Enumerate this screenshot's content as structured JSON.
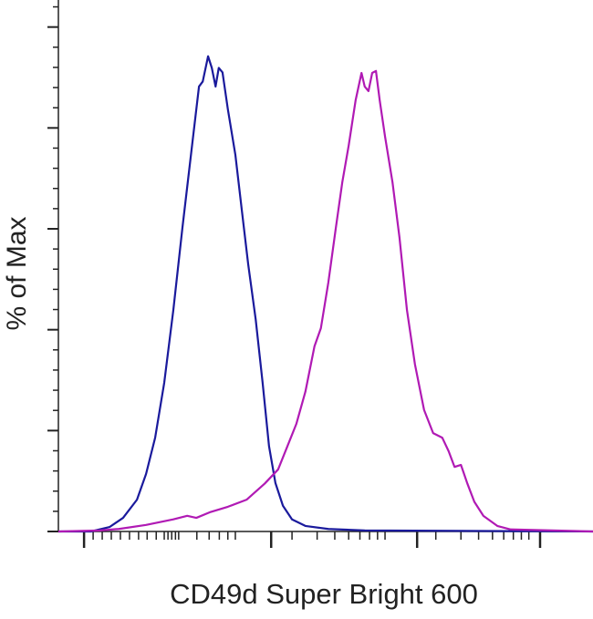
{
  "chart_data": {
    "type": "line",
    "x_label": "CD49d Super Bright 600",
    "y_label": "% of Max",
    "xlim": [
      0,
      100
    ],
    "ylim": [
      0,
      105
    ],
    "xticks": [
      4.8,
      39.8,
      67.1,
      90.1
    ],
    "x_minor_ticks": [
      6.5,
      8.2,
      9.9,
      11.6,
      13.3,
      15.0,
      16.6,
      18.3,
      19.8,
      20.5,
      21.2,
      21.9,
      22.5,
      25.9,
      28.2,
      30.1,
      31.7,
      33.1,
      43.7,
      48.4,
      51.7,
      54.3,
      56.4,
      58.2,
      59.7,
      61.1,
      70.6,
      75.3,
      78.6,
      81.2,
      83.3,
      85.1,
      86.6,
      88.0
    ],
    "yticks": [
      0,
      20,
      40,
      60,
      80,
      100
    ],
    "y_minor_ticks": [
      4,
      8,
      12,
      16,
      24,
      28,
      32,
      36,
      44,
      48,
      52,
      56,
      64,
      68,
      72,
      76,
      84,
      88,
      92,
      96,
      104
    ],
    "series": [
      {
        "color": "#1a1a9c",
        "x": [
          0,
          6.1,
          9.6,
          12.1,
          14.7,
          16.4,
          18.1,
          19.8,
          21.5,
          23.2,
          25.0,
          26.3,
          27.0,
          28.0,
          28.7,
          29.4,
          30.0,
          30.7,
          31.7,
          33.1,
          34.3,
          35.5,
          36.9,
          38.2,
          39.4,
          40.6,
          42.0,
          43.7,
          46.2,
          50.5,
          57.3,
          100
        ],
        "values": [
          0,
          0,
          0.9,
          2.7,
          6.3,
          11.4,
          18.6,
          29.5,
          43.9,
          60.2,
          76.5,
          88.2,
          89.2,
          94.2,
          91.9,
          88.2,
          91.9,
          91.0,
          83.7,
          74.7,
          63.8,
          53.0,
          42.1,
          29.5,
          16.9,
          9.6,
          5.1,
          2.4,
          1.1,
          0.5,
          0.2,
          0
        ]
      },
      {
        "color": "#b01ab4",
        "x": [
          0,
          7.8,
          11.3,
          16.4,
          21.5,
          24.1,
          25.8,
          28.3,
          31.7,
          35.2,
          38.6,
          41.1,
          42.8,
          44.5,
          46.2,
          47.9,
          49.1,
          50.5,
          51.9,
          53.1,
          54.3,
          55.6,
          56.7,
          57.3,
          58.0,
          58.7,
          59.4,
          60.1,
          61.1,
          62.5,
          63.8,
          65.2,
          66.7,
          68.4,
          70.1,
          71.8,
          73.0,
          74.1,
          75.3,
          76.5,
          77.8,
          79.5,
          82.1,
          84.6,
          100
        ],
        "values": [
          0,
          0.2,
          0.5,
          1.3,
          2.4,
          3.1,
          2.7,
          3.8,
          4.9,
          6.3,
          9.5,
          12.3,
          16.8,
          21.3,
          27.7,
          36.7,
          40.3,
          49.4,
          60.2,
          69.2,
          76.5,
          85.5,
          90.9,
          88.2,
          87.3,
          90.9,
          91.3,
          85.5,
          78.3,
          69.2,
          58.3,
          43.9,
          33.1,
          24.1,
          19.5,
          18.6,
          15.9,
          12.8,
          13.2,
          9.5,
          5.9,
          3.1,
          1.1,
          0.4,
          0
        ]
      }
    ]
  }
}
